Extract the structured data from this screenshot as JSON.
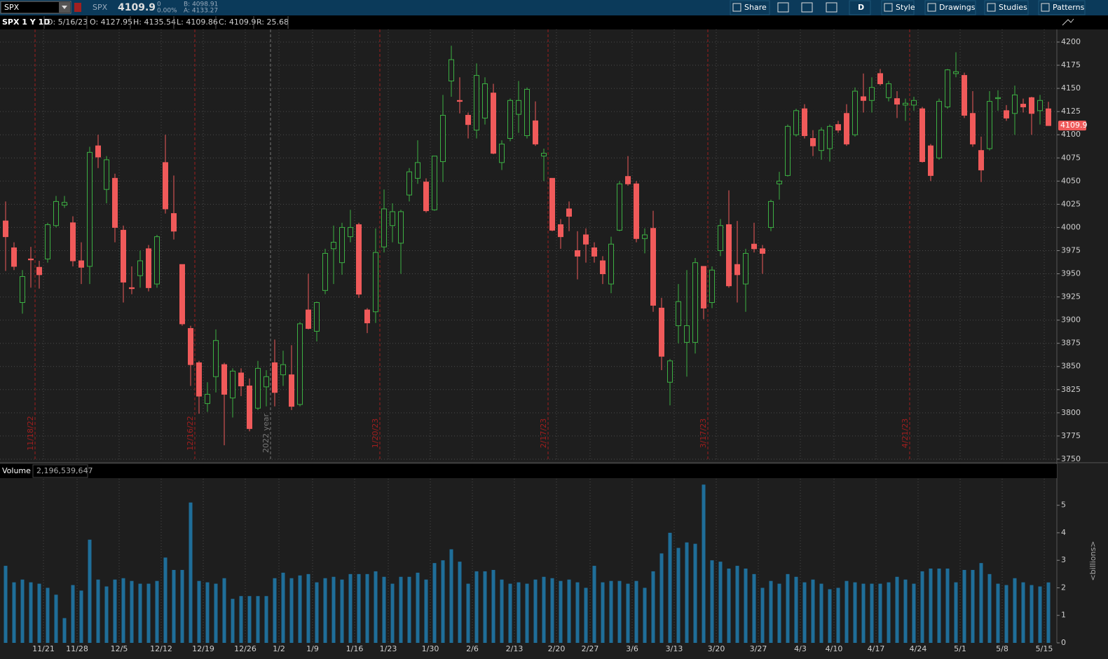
{
  "toolbar": {
    "symbol": "SPX",
    "symbol_name": "SPX",
    "last": "4109.9",
    "change": "0",
    "change_pct": "0.00%",
    "bid": "B: 4098.91",
    "ask": "A: 4133.27",
    "buttons": [
      "Share",
      "D",
      "Style",
      "Drawings",
      "Studies",
      "Patterns"
    ]
  },
  "info_bar": {
    "title": "SPX 1 Y 1D",
    "items": [
      "D: 5/16/23",
      "O: 4127.95",
      "H: 4135.54",
      "L: 4109.86",
      "C: 4109.9",
      "R: 25.68"
    ]
  },
  "chart_data": {
    "type": "candlestick",
    "categories": [
      null,
      null,
      null,
      null,
      "11/21",
      null,
      null,
      null,
      "11/28",
      null,
      null,
      null,
      null,
      "12/5",
      null,
      null,
      null,
      null,
      "12/12",
      null,
      null,
      null,
      null,
      "12/19",
      null,
      null,
      null,
      null,
      "12/26",
      null,
      null,
      null,
      "1/2",
      null,
      null,
      null,
      "1/9",
      null,
      null,
      null,
      null,
      "1/16",
      null,
      null,
      null,
      "1/23",
      null,
      null,
      null,
      null,
      "1/30",
      null,
      null,
      null,
      null,
      "2/6",
      null,
      null,
      null,
      null,
      "2/13",
      null,
      null,
      null,
      null,
      "2/20",
      null,
      null,
      null,
      "2/27",
      null,
      null,
      null,
      null,
      "3/6",
      null,
      null,
      null,
      null,
      "3/13",
      null,
      null,
      null,
      null,
      "3/20",
      null,
      null,
      null,
      null,
      "3/27",
      null,
      null,
      null,
      null,
      "4/3",
      null,
      null,
      null,
      "4/10",
      null,
      null,
      null,
      null,
      "4/17",
      null,
      null,
      null,
      null,
      "4/24",
      null,
      null,
      null,
      null,
      "5/1",
      null,
      null,
      null,
      null,
      "5/8",
      null,
      null,
      null,
      null,
      "5/15",
      null
    ],
    "open": [
      4007,
      3978,
      3919,
      3966,
      3957,
      3966,
      4002,
      4024,
      4005,
      3964,
      3958,
      4088,
      4041,
      4053,
      3997,
      3935,
      3948,
      3977,
      3939,
      4070,
      4015,
      3960,
      3891,
      3854,
      3810,
      3839,
      3852,
      3816,
      3843,
      3829,
      3805,
      3828,
      3854,
      3841,
      3841,
      3809,
      3911,
      3888,
      3932,
      3977,
      3962,
      3990,
      4003,
      3911,
      3909,
      3979,
      4002,
      3983,
      4035,
      4053,
      4049,
      4019,
      4071,
      4158,
      4137,
      4121,
      4105,
      4118,
      4145,
      4070,
      4096,
      4122,
      4099,
      4115,
      4077,
      4053,
      4003,
      4020,
      3975,
      3992,
      3978,
      3964,
      3939,
      3997,
      4055,
      4047,
      3988,
      3999,
      3913,
      3833,
      3894,
      3876,
      3876,
      3958,
      3919,
      3975,
      4003,
      3960,
      3939,
      3982,
      3977,
      4000,
      4047,
      4056,
      4100,
      4128,
      4096,
      4083,
      4085,
      4111,
      4123,
      4100,
      4141,
      4137,
      4166,
      4140,
      4139,
      4132,
      4132,
      4128,
      4088,
      4075,
      4130,
      4166,
      4164,
      4123,
      4083,
      4085,
      4139,
      4126,
      4123,
      4133,
      4140,
      4126,
      4127.95
    ],
    "high": [
      4028,
      3984,
      3954,
      3979,
      3964,
      4005,
      4034,
      4034,
      4012,
      3984,
      4087,
      4100,
      4077,
      4058,
      4002,
      3958,
      3975,
      3981,
      3992,
      4100,
      4056,
      3960,
      3894,
      3856,
      3833,
      3890,
      3854,
      3848,
      3848,
      3837,
      3856,
      3846,
      3879,
      3867,
      3873,
      3898,
      3950,
      3920,
      3977,
      4002,
      4005,
      4019,
      4005,
      3913,
      3999,
      4041,
      4026,
      4019,
      4064,
      4094,
      4053,
      4077,
      4143,
      4196,
      4162,
      4124,
      4177,
      4162,
      4155,
      4094,
      4139,
      4158,
      4151,
      4136,
      4085,
      4053,
      4009,
      4028,
      3996,
      3999,
      3984,
      3969,
      3990,
      4050,
      4077,
      4050,
      3999,
      4018,
      3924,
      3858,
      3939,
      3954,
      3967,
      3958,
      3958,
      4009,
      4040,
      4007,
      3977,
      4005,
      3981,
      4030,
      4060,
      4111,
      4128,
      4133,
      4105,
      4108,
      4111,
      4115,
      4133,
      4151,
      4166,
      4162,
      4171,
      4158,
      4147,
      4139,
      4141,
      4130,
      4090,
      4139,
      4171,
      4189,
      4167,
      4147,
      4098,
      4147,
      4148,
      4132,
      4153,
      4139,
      4141,
      4143,
      4135.54
    ],
    "low": [
      3953,
      3954,
      3907,
      3935,
      3934,
      3962,
      4000,
      4021,
      3958,
      3939,
      3939,
      4064,
      4026,
      3984,
      3919,
      3928,
      3935,
      3931,
      3935,
      4015,
      3987,
      3894,
      3829,
      3799,
      3801,
      3822,
      3765,
      3795,
      3818,
      3780,
      3803,
      3807,
      3807,
      3829,
      3803,
      3807,
      3890,
      3877,
      3928,
      3939,
      3949,
      3984,
      3924,
      3886,
      3897,
      3973,
      3984,
      3950,
      4028,
      4047,
      4016,
      4018,
      4049,
      4141,
      4123,
      4096,
      4096,
      4111,
      4079,
      4062,
      4093,
      4102,
      4096,
      4088,
      4050,
      3996,
      3977,
      3996,
      3944,
      3962,
      3962,
      3939,
      3929,
      3996,
      4045,
      3984,
      3972,
      3909,
      3846,
      3808,
      3875,
      3839,
      3864,
      3901,
      3913,
      3969,
      3935,
      3919,
      3909,
      3973,
      3950,
      3996,
      4030,
      4055,
      4098,
      4096,
      4077,
      4073,
      4071,
      4102,
      4088,
      4098,
      4124,
      4124,
      4153,
      4136,
      4118,
      4115,
      4126,
      4070,
      4050,
      4073,
      4128,
      4162,
      4118,
      4087,
      4049,
      4083,
      4126,
      4115,
      4100,
      4124,
      4100,
      4111,
      4109.86
    ],
    "close": [
      3990,
      3958,
      3947,
      3965,
      3949,
      4003,
      4028,
      4027,
      3964,
      3957,
      4081,
      4076,
      4073,
      4000,
      3941,
      3934,
      3964,
      3935,
      3990,
      4020,
      3996,
      3896,
      3852,
      3818,
      3820,
      3878,
      3820,
      3845,
      3829,
      3783,
      3848,
      3839,
      3822,
      3852,
      3807,
      3896,
      3891,
      3919,
      3972,
      3984,
      4000,
      4000,
      3928,
      3897,
      3973,
      4020,
      4017,
      4017,
      4060,
      4070,
      4018,
      4077,
      4121,
      4181,
      4136,
      4111,
      4164,
      4155,
      4080,
      4090,
      4137,
      4137,
      4149,
      4090,
      4080,
      3997,
      3990,
      4012,
      3969,
      3982,
      3969,
      3950,
      3982,
      4047,
      4047,
      3988,
      3992,
      3916,
      3861,
      3856,
      3920,
      3894,
      3962,
      3913,
      3954,
      4002,
      3937,
      3949,
      3972,
      3977,
      3972,
      4028,
      4050,
      4109,
      4126,
      4099,
      4088,
      4105,
      4109,
      4105,
      4090,
      4147,
      4137,
      4151,
      4155,
      4155,
      4133,
      4134,
      4137,
      4071,
      4056,
      4136,
      4170,
      4168,
      4121,
      4090,
      4062,
      4136,
      4140,
      4118,
      4143,
      4130,
      4123,
      4137,
      4109.9
    ],
    "up_color": "#3cb043",
    "down_color": "#f05a5a",
    "grid": true,
    "ylim": [
      3747.7,
      4213.6
    ],
    "yticks": [
      3750,
      3775,
      3800,
      3825,
      3850,
      3875,
      3900,
      3925,
      3950,
      3975,
      4000,
      4025,
      4050,
      4075,
      4100,
      4125,
      4150,
      4175,
      4200
    ],
    "events": [
      {
        "label": "11/18/22",
        "category": 3
      },
      {
        "label": "12/16/22",
        "category": 22
      },
      {
        "label": "2022 year",
        "category": 31,
        "color": "#777777"
      },
      {
        "label": "1/20/23",
        "category": 44
      },
      {
        "label": "2/17/23",
        "category": 64
      },
      {
        "label": "3/17/23",
        "category": 83
      },
      {
        "label": "4/21/23",
        "category": 107
      }
    ],
    "event_color": "#a01e1e",
    "volume": {
      "type": "bar",
      "title": "Volume",
      "last_label": "2,196,539,647",
      "unit_label": "<billions>",
      "color": "#1f6e99",
      "values": [
        2.8,
        2.2,
        2.3,
        2.2,
        2.15,
        2.0,
        1.75,
        0.9,
        2.1,
        1.9,
        3.75,
        2.3,
        2.05,
        2.3,
        2.35,
        2.25,
        2.15,
        2.15,
        2.25,
        3.1,
        2.65,
        2.65,
        5.1,
        2.25,
        2.2,
        2.15,
        2.35,
        1.6,
        1.7,
        1.7,
        1.7,
        1.7,
        2.35,
        2.55,
        2.35,
        2.45,
        2.5,
        2.2,
        2.35,
        2.4,
        2.3,
        2.5,
        2.5,
        2.5,
        2.6,
        2.4,
        2.15,
        2.4,
        2.4,
        2.55,
        2.3,
        2.9,
        3.0,
        3.4,
        2.95,
        2.15,
        2.6,
        2.6,
        2.65,
        2.3,
        2.15,
        2.2,
        2.15,
        2.3,
        2.4,
        2.35,
        2.25,
        2.3,
        2.2,
        2.0,
        2.8,
        2.2,
        2.25,
        2.25,
        2.15,
        2.25,
        2.0,
        2.6,
        3.25,
        4.0,
        3.45,
        3.65,
        3.6,
        5.75,
        3.0,
        2.95,
        2.7,
        2.8,
        2.7,
        2.5,
        2.0,
        2.25,
        2.15,
        2.5,
        2.4,
        2.2,
        2.3,
        2.15,
        1.95,
        2.0,
        2.25,
        2.2,
        2.15,
        2.15,
        2.15,
        2.2,
        2.4,
        2.3,
        2.15,
        2.6,
        2.7,
        2.7,
        2.7,
        2.2,
        2.65,
        2.65,
        2.9,
        2.5,
        2.15,
        2.1,
        2.35,
        2.2,
        2.1,
        2.05,
        2.196539647
      ],
      "ylim": [
        0,
        5.96
      ],
      "yticks": [
        0,
        1,
        2,
        3,
        4,
        5
      ]
    }
  }
}
